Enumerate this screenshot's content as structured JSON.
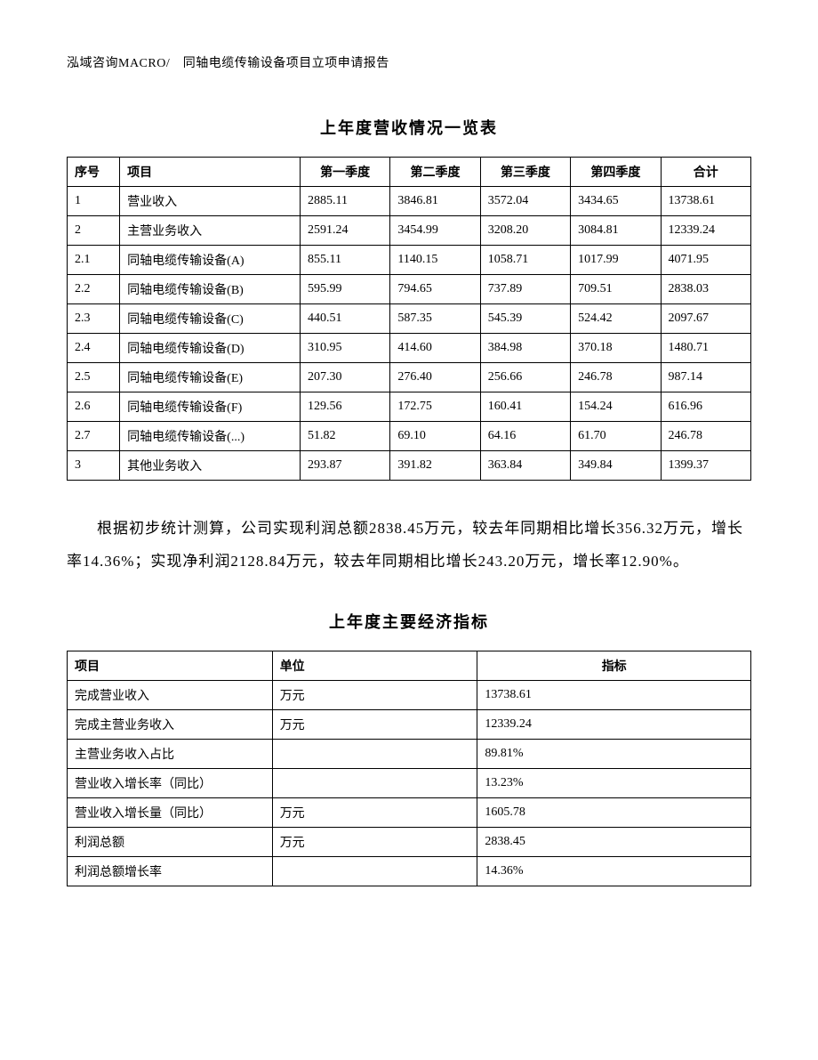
{
  "header": "泓域咨询MACRO/　同轴电缆传输设备项目立项申请报告",
  "revenue_table": {
    "title": "上年度营收情况一览表",
    "columns": [
      "序号",
      "项目",
      "第一季度",
      "第二季度",
      "第三季度",
      "第四季度",
      "合计"
    ],
    "rows": [
      [
        "1",
        "营业收入",
        "2885.11",
        "3846.81",
        "3572.04",
        "3434.65",
        "13738.61"
      ],
      [
        "2",
        "主营业务收入",
        "2591.24",
        "3454.99",
        "3208.20",
        "3084.81",
        "12339.24"
      ],
      [
        "2.1",
        "同轴电缆传输设备(A)",
        "855.11",
        "1140.15",
        "1058.71",
        "1017.99",
        "4071.95"
      ],
      [
        "2.2",
        "同轴电缆传输设备(B)",
        "595.99",
        "794.65",
        "737.89",
        "709.51",
        "2838.03"
      ],
      [
        "2.3",
        "同轴电缆传输设备(C)",
        "440.51",
        "587.35",
        "545.39",
        "524.42",
        "2097.67"
      ],
      [
        "2.4",
        "同轴电缆传输设备(D)",
        "310.95",
        "414.60",
        "384.98",
        "370.18",
        "1480.71"
      ],
      [
        "2.5",
        "同轴电缆传输设备(E)",
        "207.30",
        "276.40",
        "256.66",
        "246.78",
        "987.14"
      ],
      [
        "2.6",
        "同轴电缆传输设备(F)",
        "129.56",
        "172.75",
        "160.41",
        "154.24",
        "616.96"
      ],
      [
        "2.7",
        "同轴电缆传输设备(...)",
        "51.82",
        "69.10",
        "64.16",
        "61.70",
        "246.78"
      ],
      [
        "3",
        "其他业务收入",
        "293.87",
        "391.82",
        "363.84",
        "349.84",
        "1399.37"
      ]
    ]
  },
  "paragraph": "根据初步统计测算，公司实现利润总额2838.45万元，较去年同期相比增长356.32万元，增长率14.36%；实现净利润2128.84万元，较去年同期相比增长243.20万元，增长率12.90%。",
  "indicator_table": {
    "title": "上年度主要经济指标",
    "columns": [
      "项目",
      "单位",
      "指标"
    ],
    "rows": [
      [
        "完成营业收入",
        "万元",
        "13738.61"
      ],
      [
        "完成主营业务收入",
        "万元",
        "12339.24"
      ],
      [
        "主营业务收入占比",
        "",
        "89.81%"
      ],
      [
        "营业收入增长率（同比）",
        "",
        "13.23%"
      ],
      [
        "营业收入增长量（同比）",
        "万元",
        "1605.78"
      ],
      [
        "利润总额",
        "万元",
        "2838.45"
      ],
      [
        "利润总额增长率",
        "",
        "14.36%"
      ]
    ]
  }
}
